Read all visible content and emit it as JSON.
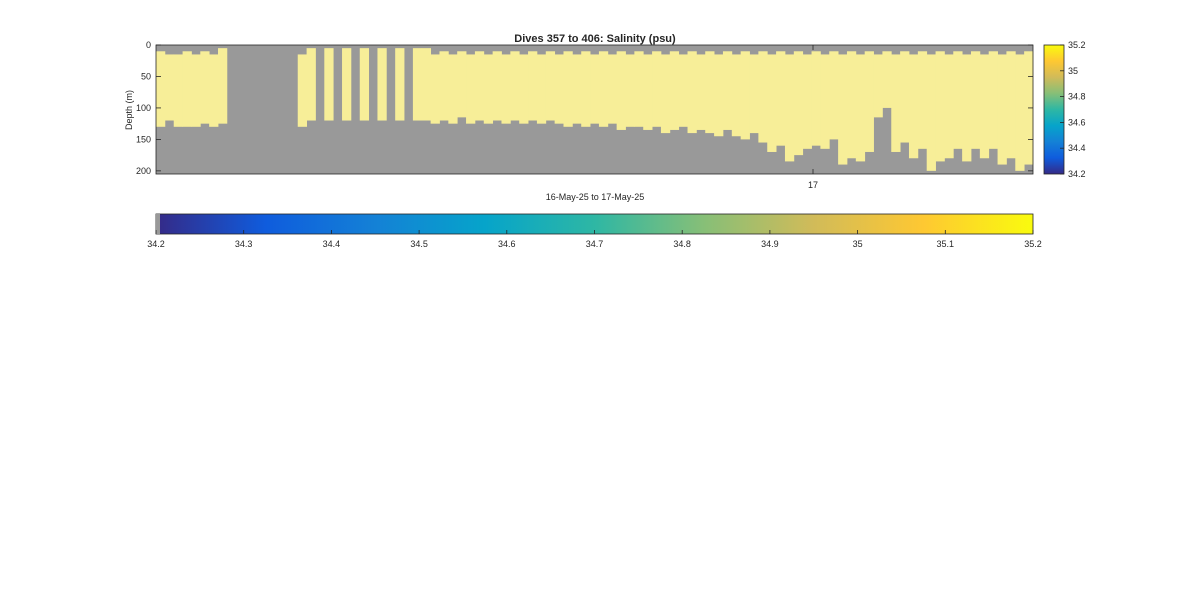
{
  "figure": {
    "title": "Dives 357 to 406: Salinity (psu)",
    "xlabel": "16-May-25 to 17-May-25",
    "ylabel": "Depth (m)"
  },
  "chart_data": {
    "type": "heatmap",
    "title": "Dives 357 to 406: Salinity (psu)",
    "xlabel": "16-May-25 to 17-May-25",
    "ylabel": "Depth (m)",
    "x_tick_labels": [
      "17"
    ],
    "y_ticks": [
      0,
      50,
      100,
      150,
      200
    ],
    "y_range": [
      0,
      205
    ],
    "y_reversed": true,
    "grid": false,
    "no_data_color": "#999999",
    "value_range": [
      34.2,
      35.2
    ],
    "colormap": "parula",
    "colormap_stops": [
      "#352a87",
      "#0f5cdd",
      "#1481d6",
      "#06a4ca",
      "#2eb7a4",
      "#87bf77",
      "#d1bb59",
      "#fec832",
      "#f9fb0e"
    ],
    "cell_color_observed": "#f7ee98",
    "observed_value_approx": 35.2,
    "profiles": [
      {
        "top": 10,
        "bottom": 130
      },
      {
        "top": 15,
        "bottom": 120
      },
      {
        "top": 15,
        "bottom": 130
      },
      {
        "top": 10,
        "bottom": 130
      },
      {
        "top": 15,
        "bottom": 130
      },
      {
        "top": 10,
        "bottom": 125
      },
      {
        "top": 15,
        "bottom": 130
      },
      {
        "top": 5,
        "bottom": 125
      },
      null,
      null,
      null,
      null,
      null,
      null,
      null,
      null,
      {
        "top": 15,
        "bottom": 130
      },
      {
        "top": 5,
        "bottom": 120
      },
      null,
      {
        "top": 5,
        "bottom": 120
      },
      null,
      {
        "top": 5,
        "bottom": 120
      },
      null,
      {
        "top": 5,
        "bottom": 120
      },
      null,
      {
        "top": 5,
        "bottom": 120
      },
      null,
      {
        "top": 5,
        "bottom": 120
      },
      null,
      {
        "top": 5,
        "bottom": 120
      },
      {
        "top": 5,
        "bottom": 120
      },
      {
        "top": 15,
        "bottom": 125
      },
      {
        "top": 10,
        "bottom": 120
      },
      {
        "top": 15,
        "bottom": 125
      },
      {
        "top": 10,
        "bottom": 115
      },
      {
        "top": 15,
        "bottom": 125
      },
      {
        "top": 10,
        "bottom": 120
      },
      {
        "top": 15,
        "bottom": 125
      },
      {
        "top": 10,
        "bottom": 120
      },
      {
        "top": 15,
        "bottom": 125
      },
      {
        "top": 10,
        "bottom": 120
      },
      {
        "top": 15,
        "bottom": 125
      },
      {
        "top": 10,
        "bottom": 120
      },
      {
        "top": 15,
        "bottom": 125
      },
      {
        "top": 10,
        "bottom": 120
      },
      {
        "top": 15,
        "bottom": 125
      },
      {
        "top": 10,
        "bottom": 130
      },
      {
        "top": 15,
        "bottom": 125
      },
      {
        "top": 10,
        "bottom": 130
      },
      {
        "top": 15,
        "bottom": 125
      },
      {
        "top": 10,
        "bottom": 130
      },
      {
        "top": 15,
        "bottom": 125
      },
      {
        "top": 10,
        "bottom": 135
      },
      {
        "top": 15,
        "bottom": 130
      },
      {
        "top": 10,
        "bottom": 130
      },
      {
        "top": 15,
        "bottom": 135
      },
      {
        "top": 10,
        "bottom": 130
      },
      {
        "top": 15,
        "bottom": 140
      },
      {
        "top": 10,
        "bottom": 135
      },
      {
        "top": 15,
        "bottom": 130
      },
      {
        "top": 10,
        "bottom": 140
      },
      {
        "top": 15,
        "bottom": 135
      },
      {
        "top": 10,
        "bottom": 140
      },
      {
        "top": 15,
        "bottom": 145
      },
      {
        "top": 10,
        "bottom": 135
      },
      {
        "top": 15,
        "bottom": 145
      },
      {
        "top": 10,
        "bottom": 150
      },
      {
        "top": 15,
        "bottom": 140
      },
      {
        "top": 10,
        "bottom": 155
      },
      {
        "top": 15,
        "bottom": 170
      },
      {
        "top": 10,
        "bottom": 160
      },
      {
        "top": 15,
        "bottom": 185
      },
      {
        "top": 10,
        "bottom": 175
      },
      {
        "top": 15,
        "bottom": 165
      },
      {
        "top": 10,
        "bottom": 160
      },
      {
        "top": 15,
        "bottom": 165
      },
      {
        "top": 10,
        "bottom": 150
      },
      {
        "top": 15,
        "bottom": 190
      },
      {
        "top": 10,
        "bottom": 180
      },
      {
        "top": 15,
        "bottom": 185
      },
      {
        "top": 10,
        "bottom": 170
      },
      {
        "top": 15,
        "bottom": 115
      },
      {
        "top": 10,
        "bottom": 100
      },
      {
        "top": 15,
        "bottom": 170
      },
      {
        "top": 10,
        "bottom": 155
      },
      {
        "top": 15,
        "bottom": 180
      },
      {
        "top": 10,
        "bottom": 165
      },
      {
        "top": 15,
        "bottom": 200
      },
      {
        "top": 10,
        "bottom": 185
      },
      {
        "top": 15,
        "bottom": 180
      },
      {
        "top": 10,
        "bottom": 165
      },
      {
        "top": 15,
        "bottom": 185
      },
      {
        "top": 10,
        "bottom": 165
      },
      {
        "top": 15,
        "bottom": 180
      },
      {
        "top": 10,
        "bottom": 165
      },
      {
        "top": 15,
        "bottom": 190
      },
      {
        "top": 10,
        "bottom": 180
      },
      {
        "top": 15,
        "bottom": 200
      },
      {
        "top": 10,
        "bottom": 190
      }
    ]
  },
  "colorbar_right": {
    "tick_labels": [
      "35.2",
      "35",
      "34.8",
      "34.6",
      "34.4",
      "34.2"
    ],
    "ticks": [
      35.2,
      35.0,
      34.8,
      34.6,
      34.4,
      34.2
    ]
  },
  "colorbar_bottom": {
    "tick_labels": [
      "34.2",
      "34.3",
      "34.4",
      "34.5",
      "34.6",
      "34.7",
      "34.8",
      "34.9",
      "35",
      "35.1",
      "35.2"
    ],
    "ticks": [
      34.2,
      34.3,
      34.4,
      34.5,
      34.6,
      34.7,
      34.8,
      34.9,
      35.0,
      35.1,
      35.2
    ]
  }
}
